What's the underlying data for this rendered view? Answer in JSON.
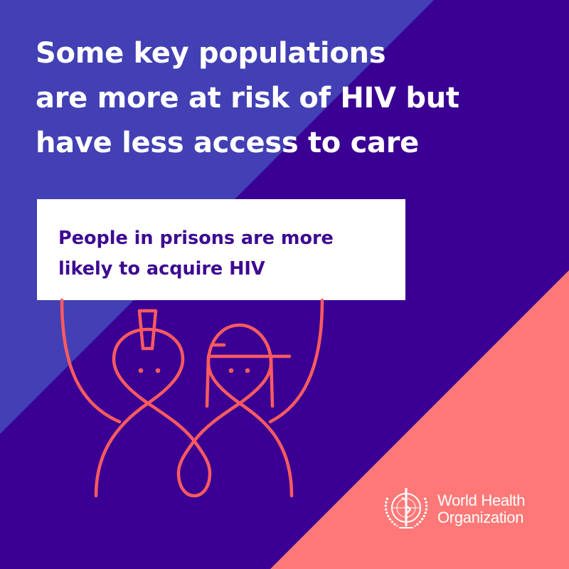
{
  "title": {
    "lines": [
      "Some key populations",
      "are more at risk of HIV but",
      "have less access to care"
    ]
  },
  "card": {
    "lines": [
      "People in prisons are more",
      "likely to acquire HIV"
    ]
  },
  "illustration": {
    "icon": "two-people-holding-sign-illustration"
  },
  "logo": {
    "icon": "who-emblem-icon",
    "lines": [
      "World Health",
      "Organization"
    ]
  },
  "colors": {
    "light_purple": "#4240b4",
    "dark_purple": "#3a0093",
    "coral": "#ff7878",
    "line": "#ff5a5f",
    "card_text": "#3d0a91"
  }
}
